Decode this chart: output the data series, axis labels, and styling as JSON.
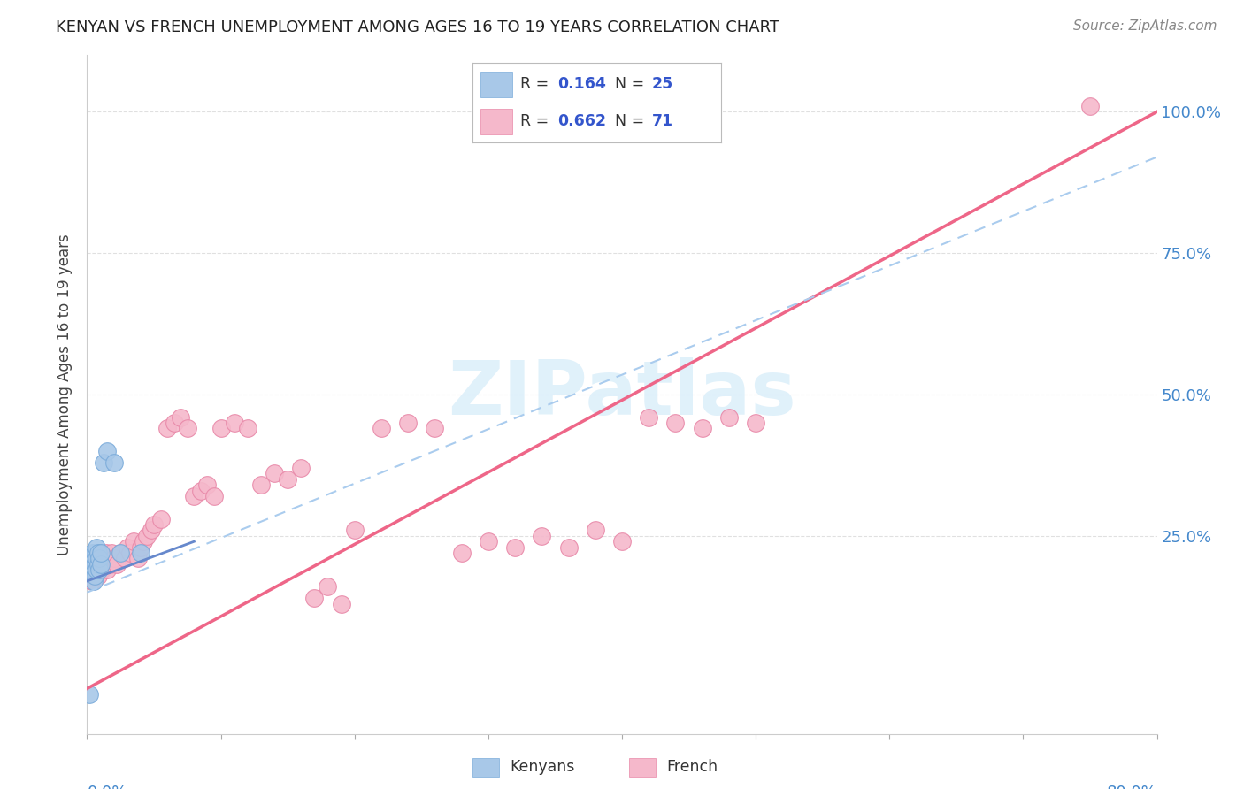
{
  "title": "KENYAN VS FRENCH UNEMPLOYMENT AMONG AGES 16 TO 19 YEARS CORRELATION CHART",
  "source": "Source: ZipAtlas.com",
  "ylabel": "Unemployment Among Ages 16 to 19 years",
  "xlim": [
    0.0,
    0.8
  ],
  "ylim": [
    -0.1,
    1.1
  ],
  "background_color": "#ffffff",
  "grid_color": "#dddddd",
  "kenyan_color": "#a8c8e8",
  "kenyan_edge": "#7aabda",
  "french_color": "#f5b8cb",
  "french_edge": "#e888a8",
  "kenyan_line_color": "#6688cc",
  "french_line_color": "#ee6688",
  "dashed_line_color": "#aaccee",
  "ytick_color": "#4488cc",
  "xtick_color": "#4488cc",
  "ylabel_color": "#444444",
  "title_color": "#222222",
  "source_color": "#888888",
  "watermark_color": "#cce8f8",
  "kenyan_x": [
    0.002,
    0.003,
    0.003,
    0.004,
    0.004,
    0.005,
    0.005,
    0.005,
    0.006,
    0.006,
    0.006,
    0.007,
    0.007,
    0.007,
    0.008,
    0.008,
    0.009,
    0.009,
    0.01,
    0.01,
    0.012,
    0.015,
    0.02,
    0.025,
    0.04
  ],
  "kenyan_y": [
    -0.03,
    0.19,
    0.21,
    0.2,
    0.22,
    0.17,
    0.19,
    0.21,
    0.18,
    0.2,
    0.22,
    0.19,
    0.21,
    0.23,
    0.2,
    0.22,
    0.19,
    0.21,
    0.2,
    0.22,
    0.38,
    0.4,
    0.38,
    0.22,
    0.22
  ],
  "french_x": [
    0.002,
    0.003,
    0.004,
    0.005,
    0.005,
    0.006,
    0.006,
    0.007,
    0.007,
    0.008,
    0.008,
    0.009,
    0.01,
    0.01,
    0.011,
    0.012,
    0.013,
    0.014,
    0.015,
    0.016,
    0.017,
    0.018,
    0.02,
    0.022,
    0.025,
    0.028,
    0.03,
    0.032,
    0.035,
    0.038,
    0.04,
    0.042,
    0.045,
    0.048,
    0.05,
    0.055,
    0.06,
    0.065,
    0.07,
    0.075,
    0.08,
    0.085,
    0.09,
    0.095,
    0.1,
    0.11,
    0.12,
    0.13,
    0.14,
    0.15,
    0.16,
    0.17,
    0.18,
    0.19,
    0.2,
    0.22,
    0.24,
    0.26,
    0.28,
    0.3,
    0.32,
    0.34,
    0.36,
    0.38,
    0.4,
    0.42,
    0.44,
    0.46,
    0.48,
    0.5,
    0.75
  ],
  "french_y": [
    0.18,
    0.2,
    0.17,
    0.19,
    0.21,
    0.18,
    0.2,
    0.19,
    0.21,
    0.18,
    0.2,
    0.19,
    0.2,
    0.22,
    0.19,
    0.21,
    0.2,
    0.22,
    0.19,
    0.21,
    0.2,
    0.22,
    0.21,
    0.2,
    0.22,
    0.21,
    0.23,
    0.22,
    0.24,
    0.21,
    0.23,
    0.24,
    0.25,
    0.26,
    0.27,
    0.28,
    0.44,
    0.45,
    0.46,
    0.44,
    0.32,
    0.33,
    0.34,
    0.32,
    0.44,
    0.45,
    0.44,
    0.34,
    0.36,
    0.35,
    0.37,
    0.14,
    0.16,
    0.13,
    0.26,
    0.44,
    0.45,
    0.44,
    0.22,
    0.24,
    0.23,
    0.25,
    0.23,
    0.26,
    0.24,
    0.46,
    0.45,
    0.44,
    0.46,
    0.45,
    1.01
  ],
  "kenyan_trend_x": [
    0.0,
    0.08
  ],
  "kenyan_trend_y": [
    0.17,
    0.24
  ],
  "french_trend_x": [
    0.0,
    0.8
  ],
  "french_trend_y": [
    -0.02,
    1.0
  ],
  "dashed_trend_x": [
    0.0,
    0.8
  ],
  "dashed_trend_y": [
    0.15,
    0.92
  ]
}
